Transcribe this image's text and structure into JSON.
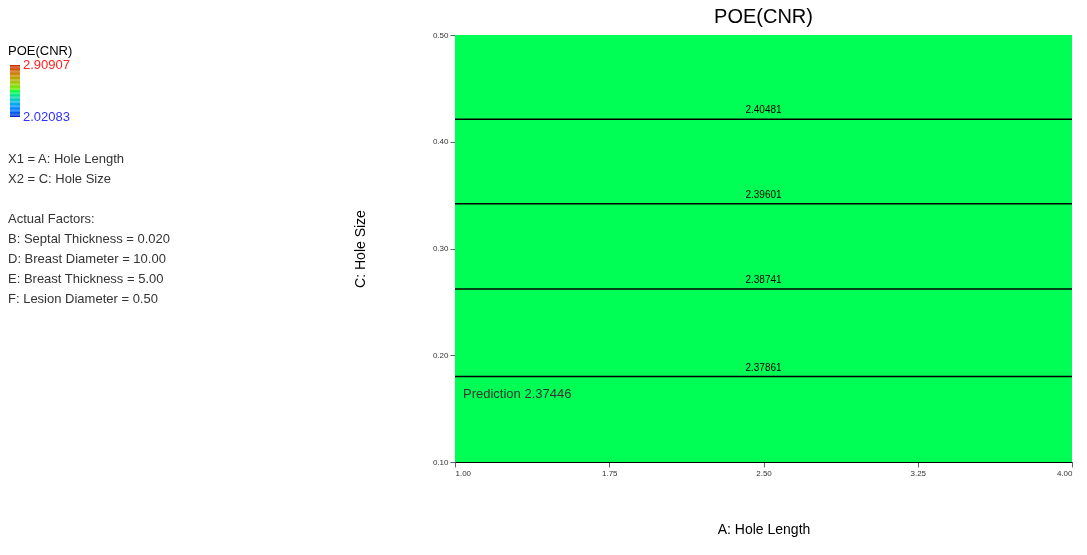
{
  "chart_data": {
    "type": "line",
    "title": "POE(CNR)",
    "xlabel": "A: Hole Length",
    "ylabel": "C: Hole Size",
    "xlim": [
      1.0,
      4.0
    ],
    "xticks": [
      {
        "value": 1.0,
        "label": "1.00"
      },
      {
        "value": 1.75,
        "label": "1.75"
      },
      {
        "value": 2.5,
        "label": "2.50"
      },
      {
        "value": 3.25,
        "label": "3.25"
      },
      {
        "value": 4.0,
        "label": "4.00"
      }
    ],
    "ylim": [
      0.1,
      0.5
    ],
    "yticks": [
      {
        "value": 0.1,
        "label": "0.10"
      },
      {
        "value": 0.2,
        "label": "0.20"
      },
      {
        "value": 0.3,
        "label": "0.30"
      },
      {
        "value": 0.4,
        "label": "0.40"
      },
      {
        "value": 0.5,
        "label": "0.50"
      }
    ],
    "x": [
      1.0,
      4.0
    ],
    "series": [
      {
        "name": "2.40481",
        "color": "#000000",
        "values": [
          0.421,
          0.421
        ]
      },
      {
        "name": "2.39601",
        "color": "#000000",
        "values": [
          0.342,
          0.342
        ]
      },
      {
        "name": "2.38741",
        "color": "#000000",
        "values": [
          0.262,
          0.262
        ]
      },
      {
        "name": "2.37861",
        "color": "#000000",
        "values": [
          0.18,
          0.18
        ]
      }
    ],
    "legend": false,
    "marker": "none",
    "line_style": "solid",
    "clabel": "POE(CNR)",
    "clim": [
      2.02083,
      2.90907
    ],
    "cticks": [
      2.02083,
      2.90907
    ],
    "bands": [
      {
        "axis": "y",
        "from": 0.1,
        "to": 0.5,
        "color": "#00ff55"
      }
    ],
    "annotations": [
      "X1 = A: Hole Length",
      "X2 = C: Hole Size",
      "Actual Factors:",
      "B: Septal Thickness = 0.020",
      "D: Breast Diameter = 10.00",
      "E: Breast Thickness = 5.00",
      "F: Lesion Diameter = 0.50",
      "Prediction 2.37446"
    ]
  }
}
